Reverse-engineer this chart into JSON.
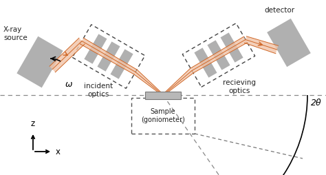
{
  "bg_color": "#ffffff",
  "gray_color": "#b0b0b0",
  "light_gray": "#c8c8c8",
  "orange_fill": "#f0c4a8",
  "orange_line": "#d06828",
  "dashed_color": "#555555",
  "text_color": "#222222",
  "labels": {
    "source": "X-ray\nsource",
    "detector": "detector",
    "incident": "incident\noptics",
    "receiving": "recieving\noptics",
    "sample": "Sample\n(goniometer)",
    "omega": "ω",
    "twotheta": "2θ",
    "z": "z",
    "x": "x"
  },
  "tilt_deg": 30,
  "scx": 237,
  "scy_img": 138,
  "horiz_img": 138
}
